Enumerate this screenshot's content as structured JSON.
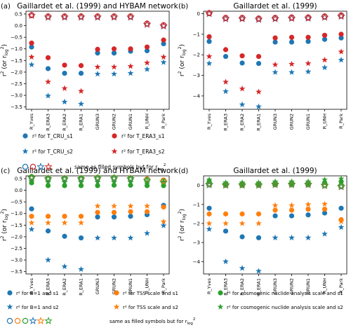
{
  "categories": [
    "R_Yves",
    "R_ERA3",
    "R_ERA2",
    "R_ERA1",
    "GRUN3",
    "GRUN2",
    "GRUN1",
    "R_UNH",
    "R_Park"
  ],
  "ylabel_main": "r",
  "ylabel_sup": "2",
  "ylabel_mid": " (or r",
  "ylabel_sub": "log",
  "ylabel_sup2": "2",
  "ylabel_end": ")",
  "colors": {
    "blue": "#1f77b4",
    "red": "#d62728",
    "orange": "#ff7f0e",
    "green": "#2ca02c"
  },
  "chart_data": [
    {
      "type": "scatter",
      "panel_letter": "(a)",
      "title": "Gaillardet et al. (1999) and HYBAM network",
      "yticks": [
        0.5,
        0.0,
        -0.5,
        -1.0,
        -1.5,
        -2.0,
        -2.5,
        -3.0,
        -3.5
      ],
      "ylim": [
        -3.6,
        0.62
      ],
      "series": [
        {
          "name": "r² for T_CRU_s1",
          "marker": "circle",
          "color": "blue",
          "values": [
            -0.92,
            -1.85,
            -2.05,
            -2.05,
            -1.18,
            -1.18,
            -1.1,
            -1.08,
            -0.78
          ]
        },
        {
          "name": "r² for T_ERA3_s1",
          "marker": "circle",
          "color": "red",
          "values": [
            -0.75,
            -1.38,
            -1.7,
            -1.72,
            -1.02,
            -1.0,
            -1.0,
            -0.92,
            -0.62
          ]
        },
        {
          "name": "r² for T_CRU_s2",
          "marker": "star",
          "color": "blue",
          "values": [
            -1.68,
            -3.02,
            -3.28,
            -3.37,
            -2.08,
            -2.08,
            -2.05,
            -1.88,
            -1.58
          ]
        },
        {
          "name": "r² for T_ERA3_s2",
          "marker": "star",
          "color": "red",
          "values": [
            -1.35,
            -2.42,
            -2.7,
            -2.82,
            -1.78,
            -1.78,
            -1.75,
            -1.6,
            -1.35
          ]
        },
        {
          "marker": "circle-open",
          "color": "blue",
          "values": [
            0.45,
            0.39,
            0.39,
            0.39,
            0.39,
            0.39,
            0.39,
            0.08,
            0.01
          ]
        },
        {
          "marker": "circle-open",
          "color": "red",
          "values": [
            0.45,
            0.4,
            0.4,
            0.4,
            0.4,
            0.4,
            0.4,
            0.09,
            0.02
          ]
        },
        {
          "marker": "star-open",
          "color": "blue",
          "values": [
            0.44,
            0.36,
            0.36,
            0.36,
            0.36,
            0.36,
            0.36,
            0.05,
            -0.02
          ]
        },
        {
          "marker": "star-open",
          "color": "red",
          "values": [
            0.44,
            0.37,
            0.37,
            0.37,
            0.37,
            0.37,
            0.37,
            0.06,
            -0.01
          ]
        }
      ],
      "legend": {
        "items": [
          "r² for T_CRU_s1",
          "r² for T_ERA3_s1",
          "r² for T_CRU_s2",
          "r² for T_ERA3_s2"
        ],
        "note": "same as filled symbols but for r",
        "note_sub": "log",
        "note_sup": "2"
      }
    },
    {
      "type": "scatter",
      "panel_letter": "(b)",
      "title": "Gaillardet et al. (1999)",
      "yticks": [
        0,
        -1,
        -2,
        -3,
        -4
      ],
      "ylim": [
        -4.65,
        0.12
      ],
      "series": [
        {
          "marker": "circle",
          "color": "blue",
          "values": [
            -1.35,
            -2.08,
            -2.4,
            -2.42,
            -1.38,
            -1.38,
            -1.35,
            -1.25,
            -1.18
          ]
        },
        {
          "marker": "circle",
          "color": "red",
          "values": [
            -1.12,
            -1.75,
            -2.05,
            -2.08,
            -1.18,
            -1.15,
            -1.15,
            -1.05,
            -1.0
          ]
        },
        {
          "marker": "star",
          "color": "blue",
          "values": [
            -2.42,
            -3.78,
            -4.42,
            -4.52,
            -2.85,
            -2.85,
            -2.82,
            -2.62,
            -2.25
          ]
        },
        {
          "marker": "star",
          "color": "red",
          "values": [
            -2.08,
            -3.32,
            -3.65,
            -3.8,
            -2.48,
            -2.45,
            -2.42,
            -2.25,
            -1.85
          ]
        },
        {
          "marker": "circle-open",
          "color": "blue",
          "values": [
            0.02,
            -0.22,
            -0.22,
            -0.25,
            -0.22,
            -0.2,
            -0.2,
            -0.15,
            -0.1
          ]
        },
        {
          "marker": "circle-open",
          "color": "red",
          "values": [
            0.03,
            -0.2,
            -0.2,
            -0.23,
            -0.2,
            -0.18,
            -0.18,
            -0.13,
            -0.08
          ]
        },
        {
          "marker": "star-open",
          "color": "blue",
          "values": [
            0.0,
            -0.25,
            -0.25,
            -0.28,
            -0.25,
            -0.23,
            -0.22,
            -0.18,
            -0.13
          ]
        },
        {
          "marker": "star-open",
          "color": "red",
          "values": [
            0.01,
            -0.24,
            -0.24,
            -0.27,
            -0.24,
            -0.22,
            -0.21,
            -0.17,
            -0.12
          ]
        }
      ]
    },
    {
      "type": "scatter",
      "panel_letter": "(c)",
      "title": "Gaillardet et al. (1999) and HYBAM network",
      "yticks": [
        0.5,
        0.0,
        -0.5,
        -1.0,
        -1.5,
        -2.0,
        -2.5,
        -3.0,
        -3.5
      ],
      "ylim": [
        -3.6,
        0.62
      ],
      "series": [
        {
          "name": "r² for B=1 and s1",
          "marker": "circle",
          "color": "blue",
          "values": [
            -0.8,
            -1.75,
            -1.98,
            -2.05,
            -1.15,
            -1.15,
            -1.12,
            -1.05,
            -0.65
          ]
        },
        {
          "name": "r² for TSS scale and s1",
          "marker": "circle",
          "color": "orange",
          "values": [
            -1.12,
            -1.12,
            -1.12,
            -1.12,
            -0.95,
            -0.95,
            -0.92,
            -0.92,
            -0.72
          ]
        },
        {
          "name": "r² for cosmogenic nuclide analysis scale and s1",
          "marker": "circle",
          "color": "green",
          "values": [
            0.32,
            0.2,
            0.2,
            0.2,
            0.2,
            0.22,
            0.22,
            0.2,
            0.2
          ]
        },
        {
          "name": "r² for B=1 and s2",
          "marker": "star",
          "color": "blue",
          "values": [
            -1.68,
            -3.0,
            -3.28,
            -3.4,
            -2.05,
            -2.05,
            -2.05,
            -1.85,
            -1.52
          ]
        },
        {
          "name": "r² for TSS scale and s2",
          "marker": "star",
          "color": "orange",
          "values": [
            -1.4,
            -1.4,
            -1.4,
            -1.4,
            -0.68,
            -0.68,
            -0.68,
            -0.68,
            -1.35
          ]
        },
        {
          "name": "r² for cosmogenic nuclide analysis scale and s2",
          "marker": "star",
          "color": "green",
          "values": [
            0.4,
            0.35,
            0.35,
            0.35,
            0.35,
            0.35,
            0.35,
            0.35,
            0.32
          ]
        },
        {
          "marker": "circle-open",
          "color": "blue",
          "values": [
            0.55,
            0.5,
            0.5,
            0.5,
            0.52,
            0.52,
            0.5,
            0.45,
            0.4
          ]
        },
        {
          "marker": "circle-open",
          "color": "orange",
          "values": [
            0.57,
            0.52,
            0.52,
            0.52,
            0.54,
            0.54,
            0.52,
            0.47,
            0.42
          ]
        },
        {
          "marker": "circle-open",
          "color": "green",
          "values": [
            0.56,
            0.51,
            0.51,
            0.51,
            0.53,
            0.53,
            0.51,
            0.44,
            0.38
          ]
        },
        {
          "marker": "star-open",
          "color": "blue",
          "values": [
            0.53,
            0.48,
            0.48,
            0.48,
            0.5,
            0.5,
            0.48,
            0.42,
            0.35
          ]
        },
        {
          "marker": "star-open",
          "color": "orange",
          "values": [
            0.54,
            0.49,
            0.49,
            0.49,
            0.51,
            0.51,
            0.49,
            0.43,
            0.36
          ]
        },
        {
          "marker": "star-open",
          "color": "green",
          "values": [
            0.55,
            0.5,
            0.5,
            0.5,
            0.52,
            0.52,
            0.5,
            0.42,
            0.33
          ]
        }
      ],
      "legend": {
        "items": [
          "r² for B=1 and s1",
          "r² for TSS scale and s1",
          "r² for cosmogenic nuclide analysis scale and s1",
          "r² for B=1 and s2",
          "r² for TSS scale and s2",
          "r² for cosmogenic nuclide analysis scale and s2"
        ],
        "note": "same as filled symbols but for r",
        "note_sub": "log",
        "note_sup": "2"
      }
    },
    {
      "type": "scatter",
      "panel_letter": "(d)",
      "title": "Gaillardet et al. (1999)",
      "yticks": [
        0,
        -1,
        -2,
        -3,
        -4
      ],
      "ylim": [
        -4.65,
        0.5
      ],
      "series": [
        {
          "marker": "circle",
          "color": "blue",
          "values": [
            -1.2,
            -2.4,
            -2.7,
            -2.75,
            -1.6,
            -1.6,
            -1.55,
            -1.45,
            -1.2
          ]
        },
        {
          "marker": "circle",
          "color": "orange",
          "values": [
            -1.5,
            -1.5,
            -1.5,
            -1.5,
            -1.3,
            -1.3,
            -1.25,
            -1.25,
            -1.8
          ]
        },
        {
          "marker": "circle",
          "color": "green",
          "values": [
            0.2,
            0.05,
            0.05,
            0.05,
            0.1,
            0.1,
            0.1,
            0.15,
            0.2
          ]
        },
        {
          "marker": "star",
          "color": "blue",
          "values": [
            -2.3,
            -4.0,
            -4.35,
            -4.5,
            -2.75,
            -2.75,
            -2.75,
            -2.55,
            -2.2
          ]
        },
        {
          "marker": "star",
          "color": "orange",
          "values": [
            -2.0,
            -2.0,
            -2.0,
            -2.0,
            -1.05,
            -1.05,
            -1.0,
            -0.98,
            -1.9
          ]
        },
        {
          "marker": "star",
          "color": "green",
          "values": [
            0.3,
            0.15,
            0.15,
            0.15,
            0.2,
            0.2,
            0.2,
            0.3,
            0.35
          ]
        },
        {
          "marker": "circle-open",
          "color": "blue",
          "values": [
            0.05,
            0.02,
            0.02,
            0.02,
            0.05,
            0.05,
            0.05,
            0.0,
            -0.05
          ]
        },
        {
          "marker": "circle-open",
          "color": "orange",
          "values": [
            0.08,
            0.04,
            0.04,
            0.04,
            0.07,
            0.07,
            0.07,
            0.02,
            -0.03
          ]
        },
        {
          "marker": "circle-open",
          "color": "green",
          "values": [
            0.1,
            0.06,
            0.06,
            0.06,
            0.09,
            0.09,
            0.09,
            0.04,
            -0.01
          ]
        },
        {
          "marker": "star-open",
          "color": "blue",
          "values": [
            0.02,
            0.0,
            0.0,
            0.0,
            0.03,
            0.03,
            0.03,
            -0.02,
            -0.08
          ]
        },
        {
          "marker": "star-open",
          "color": "orange",
          "values": [
            0.04,
            0.01,
            0.01,
            0.01,
            0.04,
            0.04,
            0.04,
            -0.01,
            -0.06
          ]
        },
        {
          "marker": "star-open",
          "color": "green",
          "values": [
            0.06,
            0.03,
            0.03,
            0.03,
            0.06,
            0.06,
            0.06,
            0.01,
            -0.04
          ]
        }
      ]
    }
  ]
}
